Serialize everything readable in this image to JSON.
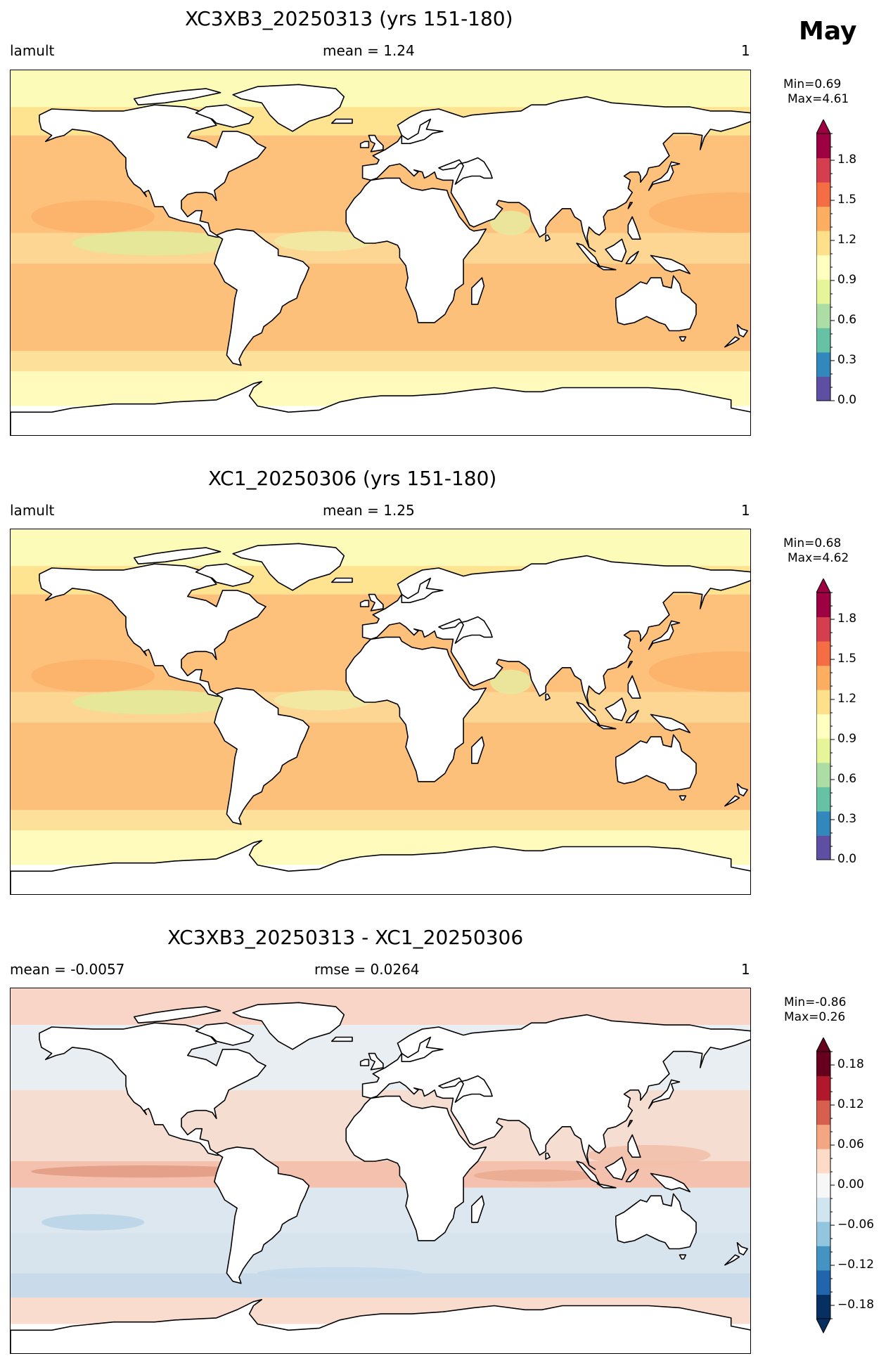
{
  "month": "May",
  "panels": [
    {
      "title": "XC3XB3_20250313 (yrs 151-180)",
      "left": "lamult",
      "center": "mean = 1.24",
      "right": "1",
      "minmax": {
        "min": "Min=0.69",
        "max": "Max=4.61"
      },
      "colorbar": {
        "type": "sequential",
        "ticks": [
          "1.8",
          "1.5",
          "1.2",
          "0.9",
          "0.6",
          "0.3",
          "0.0"
        ],
        "colors": [
          "#5e4fa2",
          "#3288bd",
          "#66c2a5",
          "#abdda4",
          "#e6f598",
          "#ffffbf",
          "#fee08b",
          "#fdae61",
          "#f46d43",
          "#d53e4f",
          "#9e0142"
        ]
      }
    },
    {
      "title": "XC1_20250306 (yrs 151-180)",
      "left": "lamult",
      "center": "mean = 1.25",
      "right": "1",
      "minmax": {
        "min": "Min=0.68",
        "max": "Max=4.62"
      },
      "colorbar": {
        "type": "sequential",
        "ticks": [
          "1.8",
          "1.5",
          "1.2",
          "0.9",
          "0.6",
          "0.3",
          "0.0"
        ],
        "colors": [
          "#5e4fa2",
          "#3288bd",
          "#66c2a5",
          "#abdda4",
          "#e6f598",
          "#ffffbf",
          "#fee08b",
          "#fdae61",
          "#f46d43",
          "#d53e4f",
          "#9e0142"
        ]
      }
    },
    {
      "title": "XC3XB3_20250313 - XC1_20250306",
      "left": "mean = -0.0057",
      "center": "rmse = 0.0264",
      "right": "1",
      "minmax": {
        "min": "Min=-0.86",
        "max": "Max=0.26"
      },
      "colorbar": {
        "type": "diverging",
        "ticks": [
          "0.18",
          "0.12",
          "0.06",
          "0.00",
          "−0.06",
          "−0.12",
          "−0.18"
        ],
        "colors": [
          "#053061",
          "#2166ac",
          "#4393c3",
          "#92c5de",
          "#d1e5f0",
          "#f7f7f7",
          "#fddbc7",
          "#f4a582",
          "#d6604d",
          "#b2182b",
          "#67001f"
        ]
      }
    }
  ],
  "chart_data": {
    "type": "heatmap",
    "variable": "lamult",
    "month": "May",
    "maps": [
      {
        "title": "XC3XB3_20250313 (yrs 151-180)",
        "mean": 1.24,
        "min": 0.69,
        "max": 4.61,
        "units": "1",
        "colorbar_range": [
          0.0,
          2.0
        ]
      },
      {
        "title": "XC1_20250306 (yrs 151-180)",
        "mean": 1.25,
        "min": 0.68,
        "max": 4.62,
        "units": "1",
        "colorbar_range": [
          0.0,
          2.0
        ]
      },
      {
        "title": "XC3XB3_20250313 - XC1_20250306",
        "mean": -0.0057,
        "rmse": 0.0264,
        "min": -0.86,
        "max": 0.26,
        "units": "1",
        "colorbar_range": [
          -0.2,
          0.2
        ]
      }
    ]
  }
}
